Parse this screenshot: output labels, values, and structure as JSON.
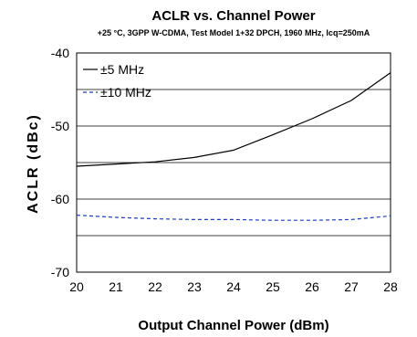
{
  "chart_data": {
    "type": "line",
    "title": "ACLR vs. Channel Power",
    "subtitle": "+25 °C, 3GPP W-CDMA, Test Model 1+32 DPCH, 1960 MHz, Icq=250mA",
    "xlabel": "Output Channel Power (dBm)",
    "ylabel": "ACLR (dBc)",
    "xlim": [
      20,
      28
    ],
    "ylim": [
      -70,
      -40
    ],
    "xticks": [
      "20",
      "21",
      "22",
      "23",
      "24",
      "25",
      "26",
      "27",
      "28"
    ],
    "yticks": [
      "-40",
      "-50",
      "-60",
      "-70"
    ],
    "grid": true,
    "legend_position": "top-left",
    "series": [
      {
        "name": "±5 MHz",
        "color": "#000000",
        "style": "solid",
        "x": [
          20,
          21,
          22,
          23,
          24,
          25,
          26,
          27,
          28
        ],
        "y": [
          -55.5,
          -55.2,
          -54.9,
          -54.3,
          -53.3,
          -51.2,
          -49.0,
          -46.5,
          -42.7
        ]
      },
      {
        "name": "±10 MHz",
        "color": "#1f3fbf",
        "style": "dashed",
        "x": [
          20,
          21,
          22,
          23,
          24,
          25,
          26,
          27,
          28
        ],
        "y": [
          -62.2,
          -62.5,
          -62.7,
          -62.8,
          -62.8,
          -62.9,
          -62.9,
          -62.8,
          -62.3
        ]
      }
    ]
  }
}
